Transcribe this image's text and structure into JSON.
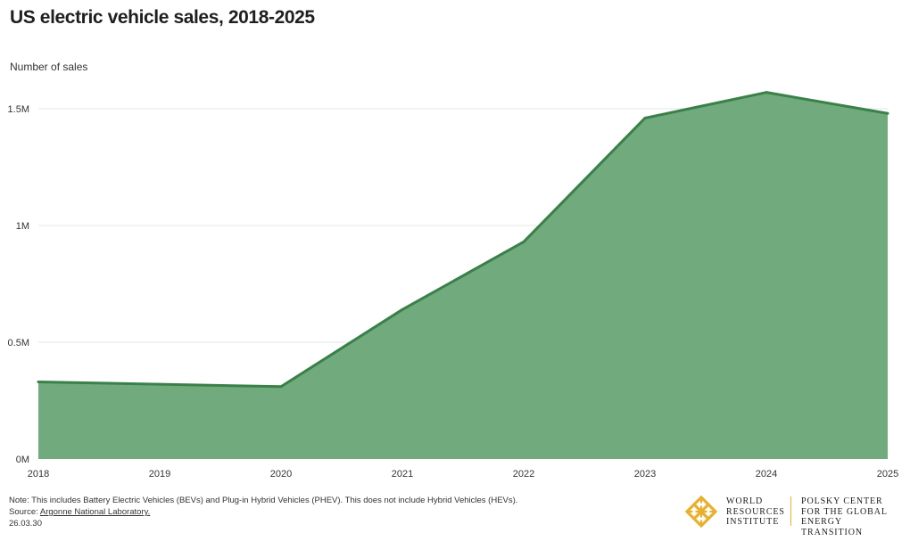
{
  "title": "US electric vehicle sales, 2018-2025",
  "y_axis_label": "Number of sales",
  "colors": {
    "area_fill": "#70aa7d",
    "line": "#3a8049",
    "grid": "#e6e6e6",
    "logo_accent": "#e9b02e"
  },
  "chart_data": {
    "type": "area",
    "title": "US electric vehicle sales, 2018-2025",
    "xlabel": "",
    "ylabel": "Number of sales",
    "x": [
      "2018",
      "2019",
      "2020",
      "2021",
      "2022",
      "2023",
      "2024",
      "2025"
    ],
    "series": [
      {
        "values": [
          330000,
          320000,
          310000,
          640000,
          930000,
          1460000,
          1570000,
          1480000
        ]
      }
    ],
    "ylim": [
      0,
      1500000
    ],
    "yticks": [
      {
        "value": 0,
        "label": "0M"
      },
      {
        "value": 500000,
        "label": "0.5M"
      },
      {
        "value": 1000000,
        "label": "1M"
      },
      {
        "value": 1500000,
        "label": "1.5M"
      }
    ],
    "grid": true,
    "legend": "none"
  },
  "footer": {
    "note": "Note: This includes Battery Electric Vehicles (BEVs) and Plug-in Hybrid Vehicles (PHEV). This does not include Hybrid Vehicles (HEVs).",
    "source_prefix": "Source: ",
    "source_link": "Argonne National Laboratory.",
    "date": "26.03.30"
  },
  "logo": {
    "wri": [
      "WORLD",
      "RESOURCES",
      "INSTITUTE"
    ],
    "polsky": [
      "POLSKY CENTER",
      "FOR THE GLOBAL",
      "ENERGY TRANSITION"
    ],
    "icon": "wri-knot-logo-icon"
  }
}
